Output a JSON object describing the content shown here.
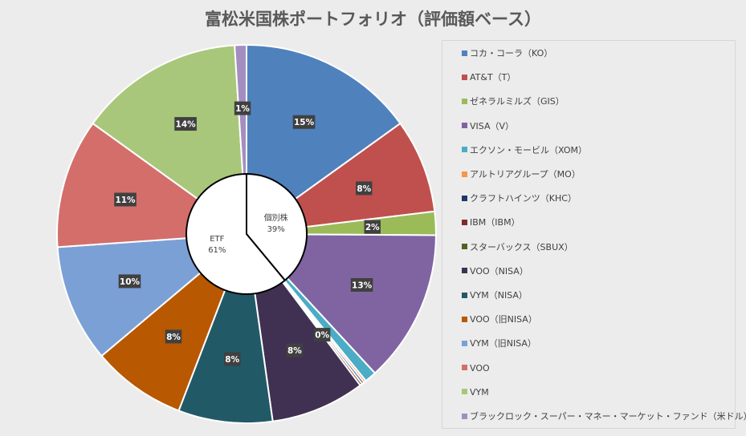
{
  "chart_data": [
    {
      "type": "pie",
      "title": "富松米国株ポートフォリオ（評価額ベース）",
      "categories": [
        "コカ・コーラ（KO）",
        "AT&T（T）",
        "ゼネラルミルズ（GIS）",
        "VISA（V）",
        "エクソン・モービル（XOM）",
        "アルトリアグループ（MO）",
        "クラフトハインツ（KHC）",
        "IBM（IBM）",
        "スターバックス（SBUX）",
        "VOO（NISA）",
        "VYM（NISA）",
        "VOO（旧NISA）",
        "VYM（旧NISA）",
        "VOO",
        "VYM",
        "ブラックロック・スーパー・マネー・マーケット・ファンド（米ドル）"
      ],
      "values": [
        15,
        8,
        2,
        13,
        1,
        0.2,
        0.2,
        0.2,
        0,
        8,
        8,
        8,
        10,
        11,
        14,
        1
      ],
      "data_labels": [
        "15%",
        "8%",
        "2%",
        "13%",
        "",
        "",
        "",
        "",
        "0%",
        "8%",
        "8%",
        "8%",
        "10%",
        "11%",
        "14%",
        "1%"
      ],
      "colors": [
        "#4f81bd",
        "#c0504d",
        "#9bbb59",
        "#8064a2",
        "#4bacc6",
        "#f79646",
        "#1f3864",
        "#7b2c2c",
        "#4f6228",
        "#403152",
        "#215967",
        "#b85800",
        "#7ba0d6",
        "#d46e6b",
        "#a9c77a",
        "#a48ec0"
      ],
      "legend_position": "right"
    },
    {
      "type": "pie",
      "categories": [
        "個別株",
        "ETF"
      ],
      "values": [
        39,
        61
      ],
      "data_labels": [
        "39%",
        "61%"
      ],
      "colors": [
        "#ffffff",
        "#ffffff"
      ]
    }
  ]
}
